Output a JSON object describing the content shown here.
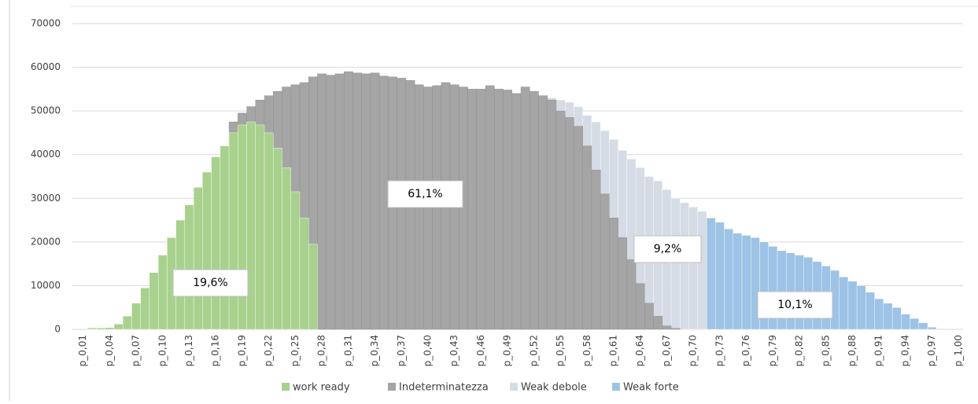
{
  "chart_data": {
    "type": "bar",
    "categories": [
      "p_0,01",
      null,
      null,
      "p_0,04",
      null,
      null,
      "p_0,07",
      null,
      null,
      "p_0,10",
      null,
      null,
      "p_0,13",
      null,
      null,
      "p_0,16",
      null,
      null,
      "p_0,19",
      null,
      null,
      "p_0,22",
      null,
      null,
      "p_0,25",
      null,
      null,
      "p_0,28",
      null,
      null,
      "p_0,31",
      null,
      null,
      "p_0,34",
      null,
      null,
      "p_0,37",
      null,
      null,
      "p_0,40",
      null,
      null,
      "p_0,43",
      null,
      null,
      "p_0,46",
      null,
      null,
      "p_0,49",
      null,
      null,
      "p_0,52",
      null,
      null,
      "p_0,55",
      null,
      null,
      "p_0,58",
      null,
      null,
      "p_0,61",
      null,
      null,
      "p_0,64",
      null,
      null,
      "p_0,67",
      null,
      null,
      "p_0,70",
      null,
      null,
      "p_0,73",
      null,
      null,
      "p_0,76",
      null,
      null,
      "p_0,79",
      null,
      null,
      "p_0,82",
      null,
      null,
      "p_0,85",
      null,
      null,
      "p_0,88",
      null,
      null,
      "p_0,91",
      null,
      null,
      "p_0,94",
      null,
      null,
      "p_0,97",
      null,
      null,
      "p_1,00"
    ],
    "series": [
      {
        "name": "work ready",
        "color": "#a9d18e",
        "values": [
          0,
          300,
          300,
          400,
          1200,
          3000,
          6000,
          9500,
          13000,
          17000,
          21000,
          25000,
          28500,
          32500,
          36000,
          39500,
          42000,
          45000,
          46800,
          47500,
          46800,
          45000,
          41500,
          37000,
          31500,
          25500,
          19500,
          null,
          null,
          null,
          null,
          null,
          null,
          null,
          null,
          null,
          null,
          null,
          null,
          null,
          null,
          null,
          null,
          null,
          null,
          null,
          null,
          null,
          null,
          null,
          null,
          null,
          null,
          null,
          null,
          null,
          null,
          null,
          null,
          null,
          null,
          null,
          null,
          null,
          null,
          null,
          null,
          null,
          null,
          null,
          null,
          null,
          null,
          null,
          null,
          null,
          null,
          null,
          null,
          null,
          null,
          null,
          null,
          null,
          null,
          null,
          null,
          null,
          null,
          null,
          null,
          null,
          null,
          null,
          null,
          null,
          null,
          null,
          null,
          null
        ]
      },
      {
        "name": "Indeterminatezza",
        "color": "#a5a5a5",
        "values": [
          null,
          null,
          null,
          null,
          null,
          null,
          null,
          null,
          null,
          null,
          null,
          null,
          null,
          null,
          null,
          null,
          null,
          47500,
          49500,
          51000,
          52500,
          53500,
          54500,
          55500,
          56000,
          56500,
          57800,
          58500,
          58200,
          58500,
          59000,
          58700,
          58500,
          58700,
          58000,
          57800,
          57500,
          57000,
          56000,
          55500,
          55800,
          56500,
          56000,
          55500,
          55000,
          55000,
          55800,
          55000,
          54800,
          54000,
          55500,
          54500,
          53500,
          52500,
          50000,
          48500,
          46500,
          42000,
          36500,
          31000,
          25500,
          21000,
          16000,
          10500,
          6000,
          3000,
          800,
          200,
          null,
          null,
          null,
          null,
          null,
          null,
          null,
          null,
          null,
          null,
          null,
          null,
          null,
          null,
          null,
          null,
          null,
          null,
          null,
          null,
          null,
          null,
          null,
          null,
          null,
          null,
          null,
          null,
          null,
          null,
          null,
          null
        ]
      },
      {
        "name": "Weak debole",
        "color": "#d6dce5",
        "values": [
          null,
          null,
          null,
          null,
          null,
          null,
          null,
          null,
          null,
          null,
          null,
          null,
          null,
          null,
          null,
          null,
          null,
          null,
          null,
          null,
          null,
          null,
          null,
          null,
          null,
          null,
          null,
          null,
          null,
          null,
          null,
          null,
          null,
          null,
          null,
          null,
          null,
          null,
          null,
          null,
          null,
          null,
          null,
          null,
          null,
          null,
          null,
          null,
          null,
          null,
          null,
          null,
          null,
          53000,
          52500,
          52000,
          51000,
          49000,
          47500,
          45500,
          43500,
          41000,
          39000,
          37000,
          35000,
          34000,
          32000,
          30000,
          29000,
          28000,
          27000,
          null,
          null,
          null,
          null,
          null,
          null,
          null,
          null,
          null,
          null,
          null,
          null,
          null,
          null,
          null,
          null,
          null,
          null,
          null,
          null,
          null,
          null,
          null,
          null,
          null,
          null,
          null,
          null,
          null
        ]
      },
      {
        "name": "Weak forte",
        "color": "#9dc3e6",
        "values": [
          null,
          null,
          null,
          null,
          null,
          null,
          null,
          null,
          null,
          null,
          null,
          null,
          null,
          null,
          null,
          null,
          null,
          null,
          null,
          null,
          null,
          null,
          null,
          null,
          null,
          null,
          null,
          null,
          null,
          null,
          null,
          null,
          null,
          null,
          null,
          null,
          null,
          null,
          null,
          null,
          null,
          null,
          null,
          null,
          null,
          null,
          null,
          null,
          null,
          null,
          null,
          null,
          null,
          null,
          null,
          null,
          null,
          null,
          null,
          null,
          null,
          null,
          null,
          null,
          null,
          null,
          null,
          null,
          null,
          null,
          null,
          25500,
          24500,
          23000,
          22000,
          21500,
          21000,
          20000,
          19000,
          18000,
          17500,
          17000,
          16500,
          15500,
          14500,
          13500,
          12000,
          11000,
          10000,
          8500,
          7000,
          6000,
          5000,
          3500,
          2500,
          1500,
          500,
          null,
          null,
          null
        ]
      }
    ],
    "annotations": [
      "19,6%",
      "61,1%",
      "9,2%",
      "10,1%"
    ],
    "ylim": [
      0,
      70000
    ],
    "yticks": [
      0,
      10000,
      20000,
      30000,
      40000,
      50000,
      60000,
      70000
    ],
    "grid": true,
    "legend": "bottom"
  }
}
